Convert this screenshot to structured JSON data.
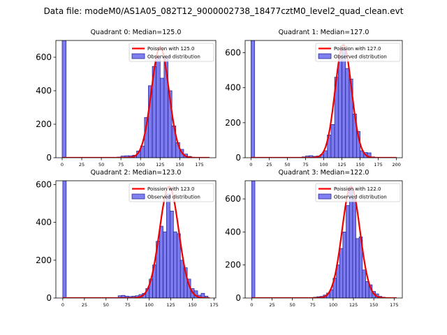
{
  "figure_title": "Data file: modeM0/AS1A05_082T12_9000002738_18477cztM0_level2_quad_clean.evt",
  "colors": {
    "bar_fill": "#7b7bef",
    "bar_edge": "#1c1c8c",
    "fit_line": "#ee0000",
    "legend_line": "#ff0000",
    "legend_patch": "#8080f0"
  },
  "chart_data": [
    {
      "type": "bar",
      "title": "Quadrant 0: Median=125.0",
      "median": 125,
      "xlim": [
        -8,
        196
      ],
      "ylim": [
        0,
        700
      ],
      "xticks": [
        0,
        25,
        50,
        75,
        100,
        125,
        150,
        175
      ],
      "yticks": [
        0,
        200,
        400,
        600
      ],
      "legend": [
        "Poission with 125.0",
        "Observed distribution"
      ],
      "legend_position": "upper-right",
      "bin_width": 5,
      "bins": [
        [
          0,
          700
        ],
        [
          70,
          4
        ],
        [
          75,
          10
        ],
        [
          80,
          12
        ],
        [
          85,
          12
        ],
        [
          90,
          15
        ],
        [
          95,
          40
        ],
        [
          100,
          70
        ],
        [
          105,
          240
        ],
        [
          110,
          430
        ],
        [
          115,
          545
        ],
        [
          120,
          600
        ],
        [
          125,
          475
        ],
        [
          130,
          600
        ],
        [
          135,
          400
        ],
        [
          140,
          190
        ],
        [
          145,
          90
        ],
        [
          150,
          50
        ],
        [
          155,
          22
        ],
        [
          160,
          8
        ],
        [
          165,
          3
        ]
      ],
      "fit": {
        "mu": 125,
        "sigma": 11.2,
        "peak": 660,
        "range": [
          0,
          188
        ]
      }
    },
    {
      "type": "bar",
      "title": "Quadrant 1: Median=127.0",
      "median": 127,
      "xlim": [
        -8,
        208
      ],
      "ylim": [
        0,
        670
      ],
      "xticks": [
        0,
        25,
        50,
        75,
        100,
        125,
        150,
        175,
        200
      ],
      "yticks": [
        0,
        200,
        400,
        600
      ],
      "legend": [
        "Poission with 127.0",
        "Observed distribution"
      ],
      "legend_position": "upper-right",
      "bin_width": 5,
      "bins": [
        [
          0,
          670
        ],
        [
          70,
          5
        ],
        [
          75,
          10
        ],
        [
          80,
          12
        ],
        [
          85,
          8
        ],
        [
          90,
          10
        ],
        [
          95,
          18
        ],
        [
          100,
          40
        ],
        [
          105,
          130
        ],
        [
          110,
          190
        ],
        [
          115,
          460
        ],
        [
          120,
          580
        ],
        [
          125,
          630
        ],
        [
          130,
          510
        ],
        [
          135,
          450
        ],
        [
          140,
          250
        ],
        [
          145,
          150
        ],
        [
          150,
          40
        ],
        [
          155,
          30
        ],
        [
          160,
          28
        ],
        [
          165,
          5
        ]
      ],
      "fit": {
        "mu": 127,
        "sigma": 11.3,
        "peak": 645,
        "range": [
          0,
          200
        ]
      }
    },
    {
      "type": "bar",
      "title": "Quadrant 2: Median=123.0",
      "median": 123,
      "xlim": [
        -8,
        177
      ],
      "ylim": [
        0,
        620
      ],
      "xticks": [
        0,
        25,
        50,
        75,
        100,
        125,
        150,
        175
      ],
      "yticks": [
        0,
        200,
        400,
        600
      ],
      "legend": [
        "Poission with 123.0",
        "Observed distribution"
      ],
      "legend_position": "upper-right",
      "bin_width": 4,
      "bins": [
        [
          0,
          620
        ],
        [
          64,
          12
        ],
        [
          68,
          14
        ],
        [
          72,
          10
        ],
        [
          76,
          8
        ],
        [
          80,
          10
        ],
        [
          84,
          12
        ],
        [
          88,
          18
        ],
        [
          92,
          25
        ],
        [
          96,
          50
        ],
        [
          100,
          100
        ],
        [
          104,
          175
        ],
        [
          108,
          300
        ],
        [
          112,
          380
        ],
        [
          116,
          350
        ],
        [
          120,
          550
        ],
        [
          124,
          460
        ],
        [
          128,
          350
        ],
        [
          132,
          340
        ],
        [
          136,
          200
        ],
        [
          140,
          160
        ],
        [
          144,
          100
        ],
        [
          148,
          50
        ],
        [
          152,
          38
        ],
        [
          156,
          15
        ],
        [
          160,
          25
        ],
        [
          164,
          10
        ]
      ],
      "fit": {
        "mu": 123,
        "sigma": 11.1,
        "peak": 590,
        "range": [
          0,
          170
        ]
      }
    },
    {
      "type": "bar",
      "title": "Quadrant 3: Median=122.0",
      "median": 122,
      "xlim": [
        -8,
        185
      ],
      "ylim": [
        0,
        710
      ],
      "xticks": [
        0,
        25,
        50,
        75,
        100,
        125,
        150,
        175
      ],
      "yticks": [
        0,
        200,
        400,
        600
      ],
      "legend": [
        "Poission with 122.0",
        "Observed distribution"
      ],
      "legend_position": "upper-right",
      "bin_width": 4,
      "bins": [
        [
          0,
          710
        ],
        [
          76,
          5
        ],
        [
          80,
          8
        ],
        [
          84,
          10
        ],
        [
          88,
          18
        ],
        [
          92,
          30
        ],
        [
          96,
          50
        ],
        [
          100,
          120
        ],
        [
          104,
          200
        ],
        [
          108,
          300
        ],
        [
          112,
          400
        ],
        [
          116,
          560
        ],
        [
          120,
          670
        ],
        [
          124,
          600
        ],
        [
          128,
          360
        ],
        [
          132,
          370
        ],
        [
          136,
          170
        ],
        [
          140,
          100
        ],
        [
          144,
          80
        ],
        [
          148,
          40
        ],
        [
          152,
          25
        ],
        [
          156,
          10
        ],
        [
          160,
          5
        ]
      ],
      "fit": {
        "mu": 122,
        "sigma": 11.0,
        "peak": 675,
        "range": [
          0,
          178
        ]
      }
    }
  ]
}
